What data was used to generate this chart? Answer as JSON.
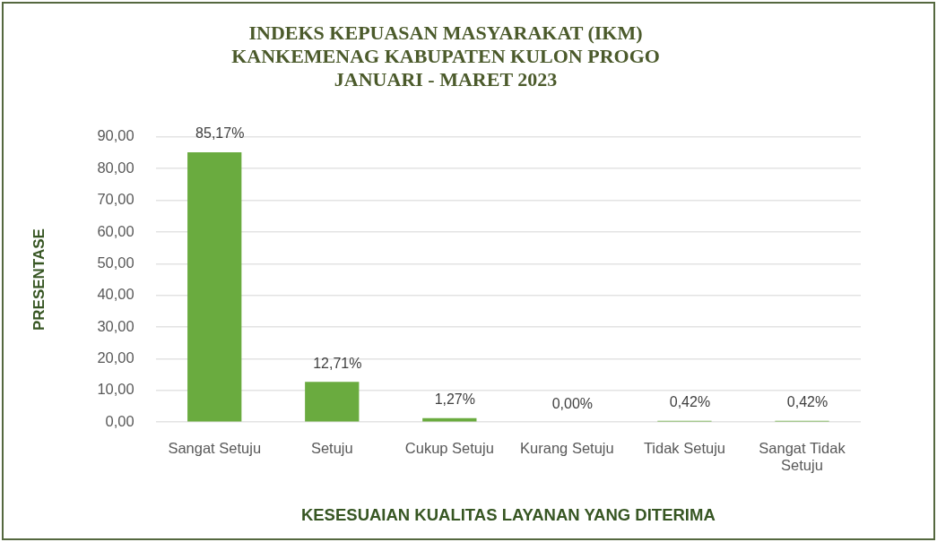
{
  "chart_data": {
    "type": "bar",
    "title": "INDEKS KEPUASAN MASYARAKAT (IKM)\nKANKEMENAG KABUPATEN KULON PROGO\nJANUARI - MARET 2023",
    "xlabel": "KESESUAIAN KUALITAS LAYANAN YANG DITERIMA",
    "ylabel": "PRESENTASE",
    "categories": [
      "Sangat Setuju",
      "Setuju",
      "Cukup Setuju",
      "Kurang Setuju",
      "Tidak Setuju",
      "Sangat Tidak Setuju"
    ],
    "values": [
      85.17,
      12.71,
      1.27,
      0,
      0.42,
      0.42
    ],
    "value_labels": [
      "85,17%",
      "12,71%",
      "1,27%",
      "0,00%",
      "0,42%",
      "0,42%"
    ],
    "color": "#6aab3f",
    "ylim": [
      0,
      90
    ],
    "yticks": [
      {
        "value": 0,
        "label": "0,00"
      },
      {
        "value": 10,
        "label": "10,00"
      },
      {
        "value": 20,
        "label": "20,00"
      },
      {
        "value": 30,
        "label": "30,00"
      },
      {
        "value": 40,
        "label": "40,00"
      },
      {
        "value": 50,
        "label": "50,00"
      },
      {
        "value": 60,
        "label": "60,00"
      },
      {
        "value": 70,
        "label": "70,00"
      },
      {
        "value": 80,
        "label": "80,00"
      },
      {
        "value": 90,
        "label": "90,00"
      }
    ],
    "grid": "y"
  }
}
